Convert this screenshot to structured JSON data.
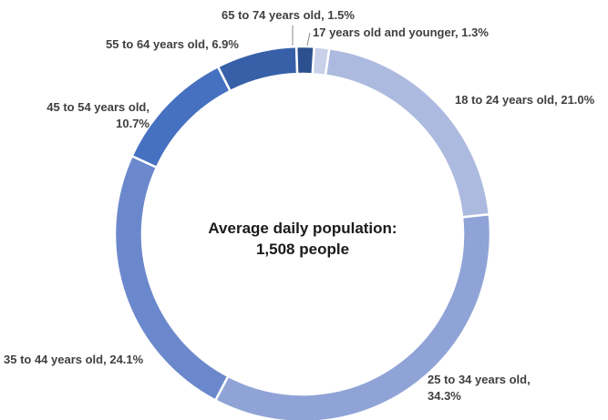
{
  "chart_data": {
    "type": "pie",
    "variant": "donut",
    "center_text": {
      "line1": "Average daily population:",
      "line2": "1,508 people"
    },
    "slices": [
      {
        "label": "17 years old and younger, 1.3%",
        "value": 1.3,
        "color": "#c9d1ea"
      },
      {
        "label": "18 to 24 years old, 21.0%",
        "value": 21.0,
        "color": "#adbadf"
      },
      {
        "label": "25 to 34 years old,",
        "label2": "34.3%",
        "value": 34.3,
        "color": "#8fa3d6"
      },
      {
        "label": "35 to 44 years old, 24.1%",
        "value": 24.1,
        "color": "#6c88cc"
      },
      {
        "label": "45 to 54 years old,",
        "label2": "10.7%",
        "value": 10.7,
        "color": "#4670c0"
      },
      {
        "label": "55 to 64 years old, 6.9%",
        "value": 6.9,
        "color": "#3760a8"
      },
      {
        "label": "65 to 74 years old, 1.5%",
        "value": 1.5,
        "color": "#2c4f8f"
      }
    ],
    "legend": "none"
  }
}
